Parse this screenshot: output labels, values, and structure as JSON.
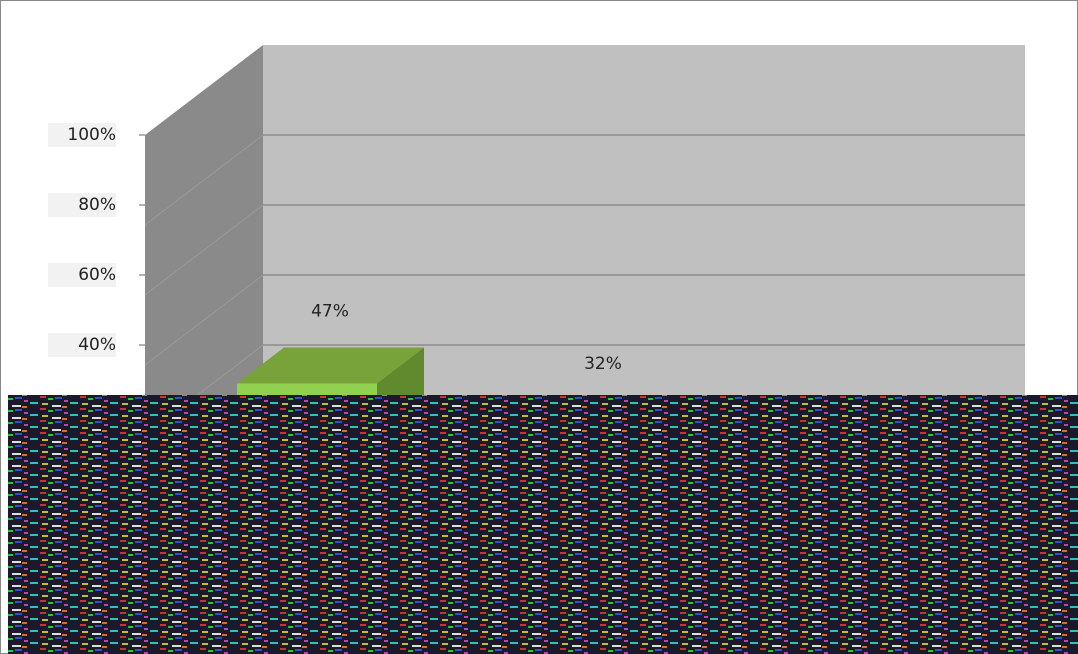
{
  "chart_data": {
    "type": "bar3d",
    "categories": [
      null,
      null
    ],
    "values": [
      47,
      32
    ],
    "value_labels": [
      "47%",
      "32%"
    ],
    "color": "#92d050",
    "ylim": [
      0,
      100
    ],
    "yticks": [
      {
        "value": 40,
        "label": "40%"
      },
      {
        "value": 60,
        "label": "60%"
      },
      {
        "value": 80,
        "label": "80%"
      },
      {
        "value": 100,
        "label": "100%"
      }
    ],
    "grid": true
  }
}
